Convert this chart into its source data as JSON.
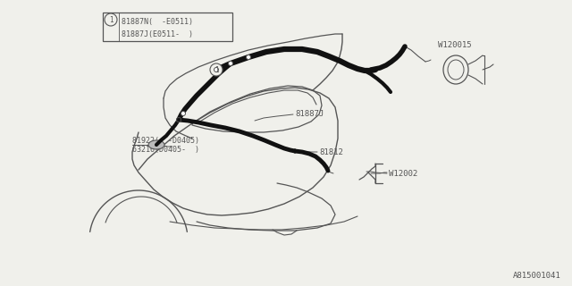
{
  "bg_color": "#f0f0eb",
  "line_color": "#555555",
  "thick_line_color": "#111111",
  "labels": {
    "legend_line1": "81887N(  -E0511)",
    "legend_line2": "81887J(E0511-  )",
    "label_81887J": "81887J",
    "label_81812": "81812",
    "label_81922": "81922(  -D0405)",
    "label_63216": "63216(D0405-  )",
    "label_W120015": "W120015",
    "label_W12002": "W12002",
    "footer": "A815001041",
    "circle_num": "1"
  },
  "font_size": 6.5,
  "footer_font_size": 6.5
}
